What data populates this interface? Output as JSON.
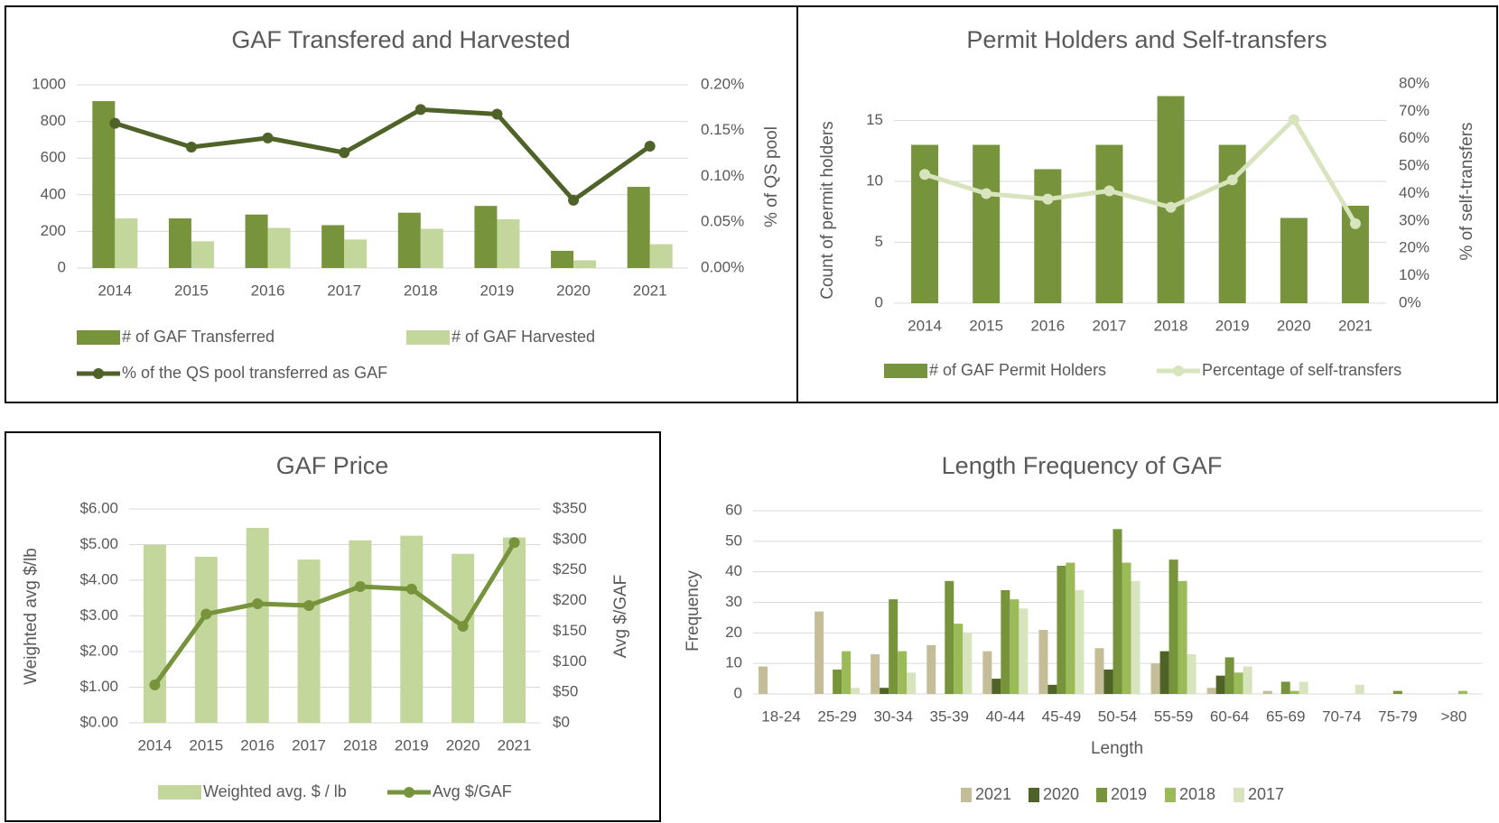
{
  "chart_data": [
    {
      "type": "combo",
      "title": "GAF Transfered and Harvested",
      "categories": [
        "2014",
        "2015",
        "2016",
        "2017",
        "2018",
        "2019",
        "2020",
        "2021"
      ],
      "series": [
        {
          "name": "# of GAF Transferred",
          "type": "bar",
          "color": "#77933c",
          "values": [
            911,
            271,
            292,
            234,
            302,
            339,
            94,
            443
          ]
        },
        {
          "name": "# of GAF Harvested",
          "type": "bar",
          "color": "#c3d69b",
          "values": [
            271,
            146,
            219,
            156,
            214,
            266,
            42,
            130
          ]
        },
        {
          "name": "% of the QS pool transferred as GAF",
          "type": "line",
          "axis": "y2",
          "marker": true,
          "color": "#4f6228",
          "values": [
            0.158,
            0.132,
            0.142,
            0.126,
            0.173,
            0.168,
            0.074,
            0.133
          ]
        }
      ],
      "ylim": [
        0,
        1000
      ],
      "yticks": [
        0,
        200,
        400,
        600,
        800,
        1000
      ],
      "y2lim": [
        0,
        0.2
      ],
      "y2ticks": [
        {
          "value": 0,
          "label": "0.00%"
        },
        {
          "value": 0.05,
          "label": "0.05%"
        },
        {
          "value": 0.1,
          "label": "0.10%"
        },
        {
          "value": 0.15,
          "label": "0.15%"
        },
        {
          "value": 0.2,
          "label": "0.20%"
        }
      ],
      "y2_label": "% of QS pool",
      "grid": true
    },
    {
      "type": "combo",
      "title": "Permit Holders and Self-transfers",
      "categories": [
        "2014",
        "2015",
        "2016",
        "2017",
        "2018",
        "2019",
        "2020",
        "2021"
      ],
      "series": [
        {
          "name": "# of GAF Permit Holders",
          "type": "bar",
          "color": "#77933c",
          "values": [
            13,
            13,
            11,
            13,
            17,
            13,
            7,
            8
          ]
        },
        {
          "name": "Percentage of self-transfers",
          "type": "line",
          "axis": "y2",
          "marker": true,
          "color": "#d7e4bd",
          "values": [
            47,
            40,
            38,
            41,
            35,
            45,
            67,
            29
          ]
        }
      ],
      "ylim": [
        0,
        18
      ],
      "yticks": [
        0,
        5,
        10,
        15
      ],
      "y2lim": [
        0,
        80
      ],
      "y2ticks": [
        {
          "value": 0,
          "label": "0%"
        },
        {
          "value": 10,
          "label": "10%"
        },
        {
          "value": 20,
          "label": "20%"
        },
        {
          "value": 30,
          "label": "30%"
        },
        {
          "value": 40,
          "label": "40%"
        },
        {
          "value": 50,
          "label": "50%"
        },
        {
          "value": 60,
          "label": "60%"
        },
        {
          "value": 70,
          "label": "70%"
        },
        {
          "value": 80,
          "label": "80%"
        }
      ],
      "y_label": "Count of permit holders",
      "y2_label": "% of self-transfers",
      "grid": true
    },
    {
      "type": "combo",
      "title": "GAF Price",
      "categories": [
        "2014",
        "2015",
        "2016",
        "2017",
        "2018",
        "2019",
        "2020",
        "2021"
      ],
      "series": [
        {
          "name": "Weighted avg. $ / lb",
          "type": "bar",
          "color": "#c3d69b",
          "values": [
            4.99,
            4.66,
            5.47,
            4.58,
            5.12,
            5.25,
            4.74,
            5.2
          ]
        },
        {
          "name": "Avg $/GAF",
          "type": "line",
          "axis": "y2",
          "marker": true,
          "color": "#77933c",
          "values": [
            62,
            178,
            195,
            192,
            223,
            219,
            158,
            295
          ]
        }
      ],
      "ylim": [
        0,
        6
      ],
      "yticks": [
        {
          "value": 0,
          "label": "$0.00"
        },
        {
          "value": 1,
          "label": "$1.00"
        },
        {
          "value": 2,
          "label": "$2.00"
        },
        {
          "value": 3,
          "label": "$3.00"
        },
        {
          "value": 4,
          "label": "$4.00"
        },
        {
          "value": 5,
          "label": "$5.00"
        },
        {
          "value": 6,
          "label": "$6.00"
        }
      ],
      "y2lim": [
        0,
        350
      ],
      "y2ticks": [
        {
          "value": 0,
          "label": "$0"
        },
        {
          "value": 50,
          "label": "$50"
        },
        {
          "value": 100,
          "label": "$100"
        },
        {
          "value": 150,
          "label": "$150"
        },
        {
          "value": 200,
          "label": "$200"
        },
        {
          "value": 250,
          "label": "$250"
        },
        {
          "value": 300,
          "label": "$300"
        },
        {
          "value": 350,
          "label": "$350"
        }
      ],
      "y_label": "Weighted avg $/lb",
      "y2_label": "Avg $/GAF",
      "grid": true
    },
    {
      "type": "bar",
      "title": "Length Frequency of GAF",
      "categories": [
        "18-24",
        "25-29",
        "30-34",
        "35-39",
        "40-44",
        "45-49",
        "50-54",
        "55-59",
        "60-64",
        "65-69",
        "70-74",
        "75-79",
        ">80"
      ],
      "series": [
        {
          "name": "2021",
          "type": "bar",
          "color": "#c4bd97",
          "values": [
            9,
            27,
            13,
            16,
            14,
            21,
            15,
            10,
            2,
            1,
            0,
            0,
            0
          ]
        },
        {
          "name": "2020",
          "type": "bar",
          "color": "#4f6228",
          "values": [
            0,
            0,
            2,
            0,
            5,
            3,
            8,
            14,
            6,
            0,
            0,
            0,
            0
          ]
        },
        {
          "name": "2019",
          "type": "bar",
          "color": "#77933c",
          "values": [
            0,
            8,
            31,
            37,
            34,
            42,
            54,
            44,
            12,
            4,
            0,
            1,
            0
          ]
        },
        {
          "name": "2018",
          "type": "bar",
          "color": "#9bbb59",
          "values": [
            0,
            14,
            14,
            23,
            31,
            43,
            43,
            37,
            7,
            1,
            0,
            0,
            1
          ]
        },
        {
          "name": "2017",
          "type": "bar",
          "color": "#d7e4bd",
          "values": [
            0,
            2,
            7,
            20,
            28,
            34,
            37,
            13,
            9,
            4,
            3,
            0,
            0
          ]
        }
      ],
      "ylim": [
        0,
        60
      ],
      "yticks": [
        0,
        10,
        20,
        30,
        40,
        50,
        60
      ],
      "x_label": "Length",
      "y_label": "Frequency",
      "grid": true
    }
  ]
}
